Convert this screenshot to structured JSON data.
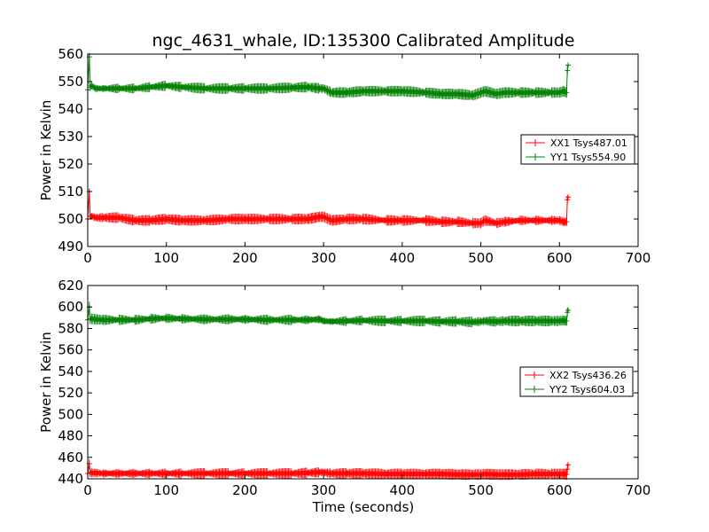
{
  "colors": {
    "red": "#ff0000",
    "green": "#008000",
    "axis": "#000000",
    "background": "#ffffff"
  },
  "chart_data": [
    {
      "type": "line",
      "title": "ngc_4631_whale, ID:135300 Calibrated Amplitude",
      "xlabel": "",
      "ylabel": "Power in Kelvin",
      "xlim": [
        0,
        700
      ],
      "ylim": [
        490,
        560
      ],
      "xticks": [
        "0",
        "100",
        "200",
        "300",
        "400",
        "500",
        "600",
        "700"
      ],
      "yticks": [
        "490",
        "500",
        "510",
        "520",
        "530",
        "540",
        "550",
        "560"
      ],
      "grid": false,
      "legend_position": "right",
      "series": [
        {
          "name": "XX1 Tsys487.01",
          "color": "#ff0000",
          "x": [
            0,
            2,
            3,
            5,
            10,
            20,
            40,
            60,
            80,
            100,
            120,
            150,
            180,
            200,
            230,
            260,
            280,
            295,
            300,
            310,
            330,
            350,
            380,
            400,
            430,
            450,
            470,
            490,
            500,
            505,
            520,
            530,
            550,
            570,
            590,
            600,
            605,
            609,
            610,
            611
          ],
          "y": [
            500,
            510,
            501,
            501,
            500.5,
            500.5,
            500.5,
            499.5,
            499.5,
            500,
            499.5,
            499.5,
            500,
            500,
            500,
            500,
            500,
            500.8,
            500.8,
            499.5,
            500,
            500,
            499.5,
            499.5,
            499.5,
            499,
            499,
            498.5,
            498.5,
            499.5,
            498.5,
            499,
            499.5,
            499.5,
            499.5,
            499.5,
            499,
            499,
            507,
            508
          ]
        },
        {
          "name": "YY1 Tsys554.90",
          "color": "#008000",
          "x": [
            0,
            2,
            3,
            5,
            10,
            20,
            40,
            60,
            80,
            100,
            120,
            150,
            180,
            200,
            230,
            260,
            280,
            295,
            300,
            310,
            330,
            350,
            380,
            400,
            430,
            450,
            470,
            490,
            500,
            505,
            520,
            530,
            550,
            570,
            590,
            600,
            605,
            609,
            610,
            611
          ],
          "y": [
            547,
            559,
            548,
            548.5,
            547.5,
            547.5,
            547.5,
            547.5,
            548,
            548.5,
            548,
            547.5,
            547.5,
            547.5,
            547.5,
            547.8,
            548,
            547.5,
            547.5,
            546,
            546,
            546.5,
            546.5,
            546.5,
            546,
            545.5,
            545.5,
            545,
            546,
            546.5,
            545.5,
            546,
            546,
            546,
            546,
            546,
            546.5,
            546,
            554,
            556
          ]
        }
      ]
    },
    {
      "type": "line",
      "title": "",
      "xlabel": "Time (seconds)",
      "ylabel": "Power in Kelvin",
      "xlim": [
        0,
        700
      ],
      "ylim": [
        440,
        620
      ],
      "xticks": [
        "0",
        "100",
        "200",
        "300",
        "400",
        "500",
        "600",
        "700"
      ],
      "yticks": [
        "440",
        "460",
        "480",
        "500",
        "520",
        "540",
        "560",
        "580",
        "600",
        "620"
      ],
      "grid": false,
      "legend_position": "right",
      "series": [
        {
          "name": "XX2 Tsys436.26",
          "color": "#ff0000",
          "x": [
            0,
            2,
            3,
            5,
            10,
            20,
            40,
            60,
            80,
            100,
            120,
            150,
            180,
            200,
            230,
            260,
            280,
            295,
            300,
            310,
            330,
            350,
            380,
            400,
            430,
            450,
            470,
            490,
            500,
            505,
            520,
            530,
            550,
            570,
            590,
            600,
            605,
            609,
            610,
            611
          ],
          "y": [
            445,
            454,
            446,
            445.5,
            445.5,
            445,
            445,
            445,
            445,
            445,
            445,
            445,
            445,
            445,
            445,
            445,
            445.5,
            446,
            446,
            445,
            445,
            445,
            444.5,
            444.5,
            444.5,
            444.5,
            444,
            444,
            444,
            444.5,
            444,
            444,
            444,
            444.5,
            444.5,
            444.5,
            444.5,
            444,
            449,
            453
          ]
        },
        {
          "name": "YY2 Tsys604.03",
          "color": "#008000",
          "x": [
            0,
            2,
            3,
            5,
            10,
            20,
            40,
            60,
            80,
            100,
            120,
            150,
            180,
            200,
            230,
            260,
            280,
            295,
            300,
            310,
            330,
            350,
            380,
            400,
            430,
            450,
            470,
            490,
            500,
            505,
            520,
            530,
            550,
            570,
            590,
            600,
            605,
            609,
            610,
            611
          ],
          "y": [
            588,
            600,
            589,
            589,
            588.5,
            588,
            588,
            588,
            589,
            589.5,
            589,
            588.5,
            588.5,
            588.5,
            588,
            588,
            588,
            588.5,
            587,
            586.5,
            587,
            587.5,
            587,
            587,
            587,
            586.5,
            586.5,
            586,
            586.5,
            587,
            586.5,
            587,
            587,
            587,
            587,
            587,
            587.5,
            587,
            595,
            597
          ]
        }
      ]
    }
  ]
}
